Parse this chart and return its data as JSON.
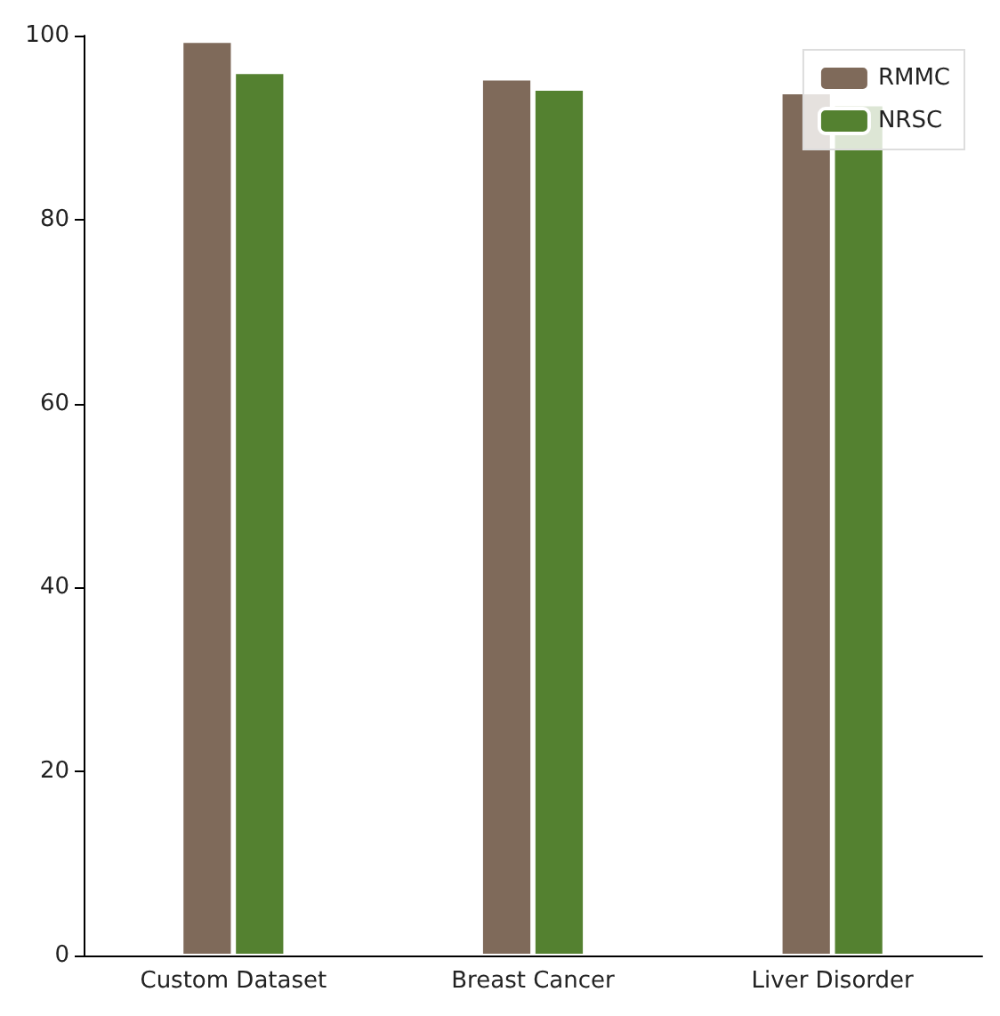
{
  "chart_data": {
    "type": "bar",
    "categories": [
      "Custom Dataset",
      "Breast Cancer",
      "Liver Disorder"
    ],
    "series": [
      {
        "name": "RMMC",
        "color": "#7f6a5a",
        "values": [
          99.4,
          95.3,
          93.8
        ]
      },
      {
        "name": "NRSC",
        "color": "#548130",
        "values": [
          96.0,
          94.2,
          92.5
        ]
      }
    ],
    "ylim": [
      0,
      100
    ],
    "yticks": [
      0,
      20,
      40,
      60,
      80,
      100
    ],
    "grid": false,
    "legend": "top right"
  }
}
